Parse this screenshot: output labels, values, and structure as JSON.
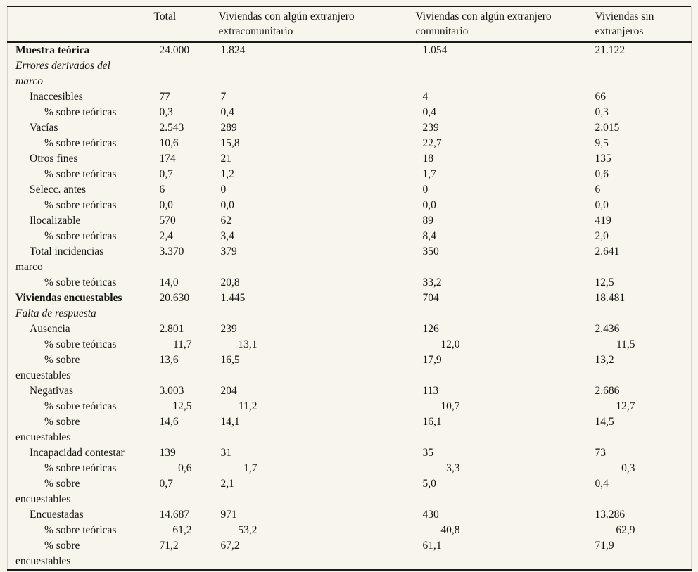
{
  "page": {
    "background_color": "#f8f5ec",
    "text_color": "#141414",
    "rule_color": "#1a1a1a"
  },
  "table": {
    "columns": [
      {
        "key": "label",
        "label": ""
      },
      {
        "key": "total",
        "label": "Total"
      },
      {
        "key": "extracomunitario",
        "label": "Viviendas con algún extranjero\nextracomunitario"
      },
      {
        "key": "comunitario",
        "label": "Viviendas con algún extranjero\ncomunitario"
      },
      {
        "key": "sin_extranjeros",
        "label": "Viviendas sin\nextranjeros"
      }
    ],
    "rows": [
      {
        "label": "Muestra teórica",
        "indent": 0,
        "style": "bold",
        "align": "left",
        "values": [
          "24.000",
          "1.824",
          "1.054",
          "21.122"
        ]
      },
      {
        "label": "Errores derivados del\nmarco",
        "indent": 0,
        "style": "italic",
        "align": "left",
        "values": [
          "",
          "",
          "",
          ""
        ]
      },
      {
        "label": "Inaccesibles",
        "indent": 1,
        "style": "normal",
        "align": "left",
        "values": [
          "77",
          "7",
          "4",
          "66"
        ]
      },
      {
        "label": "% sobre teóricas",
        "indent": 2,
        "style": "normal",
        "align": "left",
        "values": [
          "0,3",
          "0,4",
          "0,4",
          "0,3"
        ]
      },
      {
        "label": "Vacías",
        "indent": 1,
        "style": "normal",
        "align": "left",
        "values": [
          "2.543",
          "289",
          "239",
          "2.015"
        ]
      },
      {
        "label": "% sobre teóricas",
        "indent": 2,
        "style": "normal",
        "align": "left",
        "values": [
          "10,6",
          "15,8",
          "22,7",
          "9,5"
        ]
      },
      {
        "label": "Otros fines",
        "indent": 1,
        "style": "normal",
        "align": "left",
        "values": [
          "174",
          "21",
          "18",
          "135"
        ]
      },
      {
        "label": "% sobre teóricas",
        "indent": 2,
        "style": "normal",
        "align": "left",
        "values": [
          "0,7",
          "1,2",
          "1,7",
          "0,6"
        ]
      },
      {
        "label": "Selecc. antes",
        "indent": 1,
        "style": "normal",
        "align": "left",
        "values": [
          "6",
          "0",
          "0",
          "6"
        ]
      },
      {
        "label": "% sobre teóricas",
        "indent": 2,
        "style": "normal",
        "align": "left",
        "values": [
          "0,0",
          "0,0",
          "0,0",
          "0,0"
        ]
      },
      {
        "label": "Ilocalizable",
        "indent": 1,
        "style": "normal",
        "align": "left",
        "values": [
          "570",
          "62",
          "89",
          "419"
        ]
      },
      {
        "label": "% sobre teóricas",
        "indent": 2,
        "style": "normal",
        "align": "left",
        "values": [
          "2,4",
          "3,4",
          "8,4",
          "2,0"
        ]
      },
      {
        "label": "Total incidencias\nmarco",
        "indent": 1,
        "style": "normal",
        "align": "left",
        "values": [
          "3.370",
          "379",
          "350",
          "2.641"
        ]
      },
      {
        "label": "% sobre teóricas",
        "indent": 2,
        "style": "normal",
        "align": "left",
        "values": [
          "14,0",
          "20,8",
          "33,2",
          "12,5"
        ]
      },
      {
        "label": "Viviendas encuestables",
        "indent": 0,
        "style": "bold",
        "align": "left",
        "values": [
          "20.630",
          "1.445",
          "704",
          "18.481"
        ]
      },
      {
        "label": "Falta de respuesta",
        "indent": 0,
        "style": "italic",
        "align": "left",
        "values": [
          "",
          "",
          "",
          ""
        ]
      },
      {
        "label": "Ausencia",
        "indent": 1,
        "style": "normal",
        "align": "left",
        "values": [
          "2.801",
          "239",
          "126",
          "2.436"
        ]
      },
      {
        "label": "% sobre teóricas",
        "indent": 2,
        "style": "normal",
        "align": "right",
        "values": [
          "11,7",
          "13,1",
          "12,0",
          "11,5"
        ]
      },
      {
        "label": "% sobre\nencuestables",
        "indent": 2,
        "style": "normal",
        "align": "left",
        "values": [
          "13,6",
          "16,5",
          "17,9",
          "13,2"
        ]
      },
      {
        "label": "Negativas",
        "indent": 1,
        "style": "normal",
        "align": "left",
        "values": [
          "3.003",
          "204",
          "113",
          "2.686"
        ]
      },
      {
        "label": "% sobre teóricas",
        "indent": 2,
        "style": "normal",
        "align": "right",
        "values": [
          "12,5",
          "11,2",
          "10,7",
          "12,7"
        ]
      },
      {
        "label": "% sobre\nencuestables",
        "indent": 2,
        "style": "normal",
        "align": "left",
        "values": [
          "14,6",
          "14,1",
          "16,1",
          "14,5"
        ]
      },
      {
        "label": "Incapacidad contestar",
        "indent": 1,
        "style": "normal",
        "align": "left",
        "values": [
          "139",
          "31",
          "35",
          "73"
        ]
      },
      {
        "label": "% sobre teóricas",
        "indent": 2,
        "style": "normal",
        "align": "right",
        "values": [
          "0,6",
          "1,7",
          "3,3",
          "0,3"
        ]
      },
      {
        "label": "% sobre\nencuestables",
        "indent": 2,
        "style": "normal",
        "align": "left",
        "values": [
          "0,7",
          "2,1",
          "5,0",
          "0,4"
        ]
      },
      {
        "label": "Encuestadas",
        "indent": 1,
        "style": "normal",
        "align": "left",
        "values": [
          "14.687",
          "971",
          "430",
          "13.286"
        ]
      },
      {
        "label": "% sobre teóricas",
        "indent": 2,
        "style": "normal",
        "align": "right",
        "values": [
          "61,2",
          "53,2",
          "40,8",
          "62,9"
        ]
      },
      {
        "label": "% sobre\nencuestables",
        "indent": 2,
        "style": "normal",
        "align": "left",
        "values": [
          "71,2",
          "67,2",
          "61,1",
          "71,9"
        ]
      }
    ]
  }
}
